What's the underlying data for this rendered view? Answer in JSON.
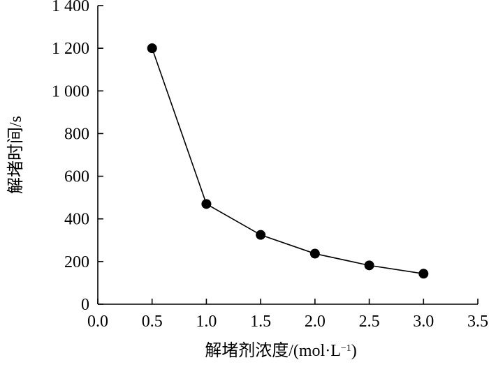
{
  "chart_data": {
    "type": "line",
    "title": "",
    "xlabel": "解堵剂浓度/(mol·L",
    "xlabel_sup": "−1",
    "xlabel_close": ")",
    "ylabel": "解堵时间/s",
    "xlim": [
      0,
      3.5
    ],
    "ylim": [
      0,
      1400
    ],
    "grid": false,
    "x_ticks": [
      0,
      0.5,
      1.0,
      1.5,
      2.0,
      2.5,
      3.0,
      3.5
    ],
    "x_tick_labels": [
      "0.0",
      "0.5",
      "1.0",
      "1.5",
      "2.0",
      "2.5",
      "3.0",
      "3.5"
    ],
    "y_ticks": [
      0,
      200,
      400,
      600,
      800,
      1000,
      1200,
      1400
    ],
    "y_tick_labels": [
      "0",
      "200",
      "400",
      "600",
      "800",
      "1 000",
      "1 200",
      "1 400"
    ],
    "series": [
      {
        "x": [
          0.5,
          1.0,
          1.5,
          2.0,
          2.5,
          3.0
        ],
        "values": [
          1200,
          470,
          325,
          237,
          182,
          143
        ]
      }
    ],
    "colors": {
      "line": "#000000",
      "marker": "#000000"
    }
  }
}
